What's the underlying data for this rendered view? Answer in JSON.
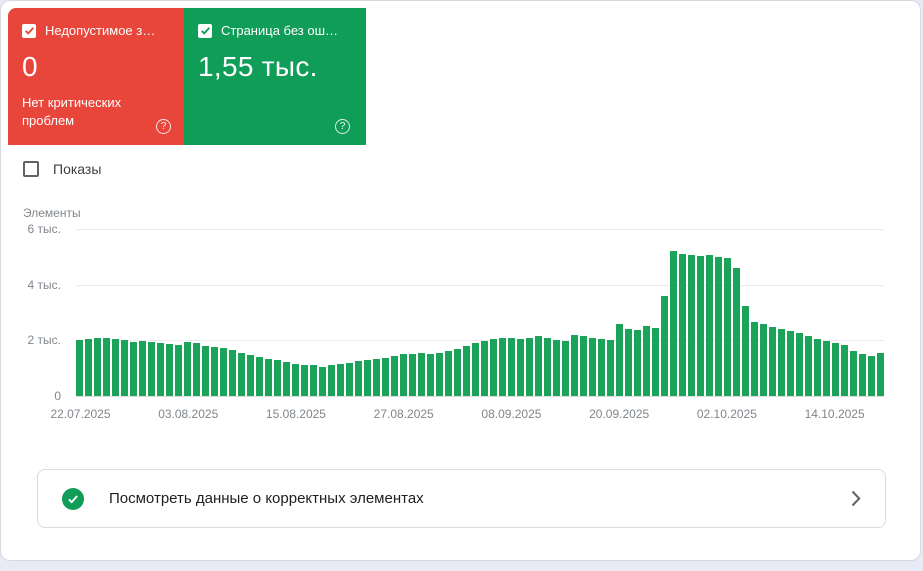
{
  "cards": {
    "error": {
      "label": "Недопустимое з…",
      "value": "0",
      "subtext": "Нет критических проблем",
      "color": "#e8453b"
    },
    "valid": {
      "label": "Страница без ош…",
      "value": "1,55 тыс.",
      "color": "#0f9d58"
    }
  },
  "icons": {
    "help": "?"
  },
  "impressions_toggle": {
    "label": "Показы",
    "checked": false
  },
  "chart_data": {
    "type": "bar",
    "title": "",
    "xlabel": "",
    "ylabel": "Элементы",
    "ylim": [
      0,
      6000
    ],
    "grid": true,
    "bar_color": "#1ca35a",
    "y_ticks": [
      {
        "label": "6 тыс.",
        "value": 6000
      },
      {
        "label": "4 тыс.",
        "value": 4000
      },
      {
        "label": "2 тыс.",
        "value": 2000
      },
      {
        "label": "0",
        "value": 0
      }
    ],
    "x_ticks": [
      {
        "label": "22.07.2025",
        "index": 0
      },
      {
        "label": "03.08.2025",
        "index": 12
      },
      {
        "label": "15.08.2025",
        "index": 24
      },
      {
        "label": "27.08.2025",
        "index": 36
      },
      {
        "label": "08.09.2025",
        "index": 48
      },
      {
        "label": "20.09.2025",
        "index": 60
      },
      {
        "label": "02.10.2025",
        "index": 72
      },
      {
        "label": "14.10.2025",
        "index": 84
      }
    ],
    "values": [
      2000,
      2060,
      2100,
      2100,
      2060,
      2000,
      1950,
      1980,
      1950,
      1900,
      1860,
      1830,
      1950,
      1920,
      1780,
      1760,
      1720,
      1650,
      1560,
      1480,
      1400,
      1330,
      1280,
      1220,
      1160,
      1120,
      1100,
      1060,
      1100,
      1140,
      1200,
      1260,
      1300,
      1330,
      1380,
      1430,
      1500,
      1520,
      1550,
      1520,
      1560,
      1620,
      1700,
      1800,
      1900,
      1980,
      2040,
      2080,
      2100,
      2060,
      2100,
      2140,
      2100,
      2020,
      1960,
      2200,
      2160,
      2100,
      2060,
      2020,
      2600,
      2420,
      2380,
      2500,
      2460,
      3600,
      5200,
      5120,
      5060,
      5040,
      5060,
      5000,
      4950,
      4600,
      3250,
      2650,
      2580,
      2480,
      2420,
      2350,
      2250,
      2150,
      2050,
      1980,
      1920,
      1850,
      1600,
      1500,
      1450,
      1550
    ]
  },
  "action_card": {
    "label": "Посмотреть данные о корректных элементах"
  }
}
